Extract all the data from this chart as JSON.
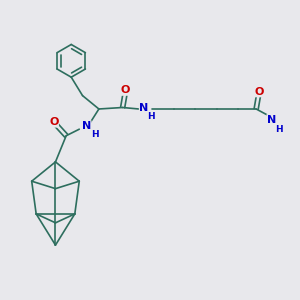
{
  "bg_color": "#e8e8ec",
  "bond_color": "#2d6e5e",
  "bond_width": 1.2,
  "atom_colors": {
    "O": "#cc0000",
    "N": "#0000cc",
    "H": "#2d6e5e"
  },
  "font_size": 7.5,
  "fig_width": 3.0,
  "fig_height": 3.0,
  "dpi": 100
}
